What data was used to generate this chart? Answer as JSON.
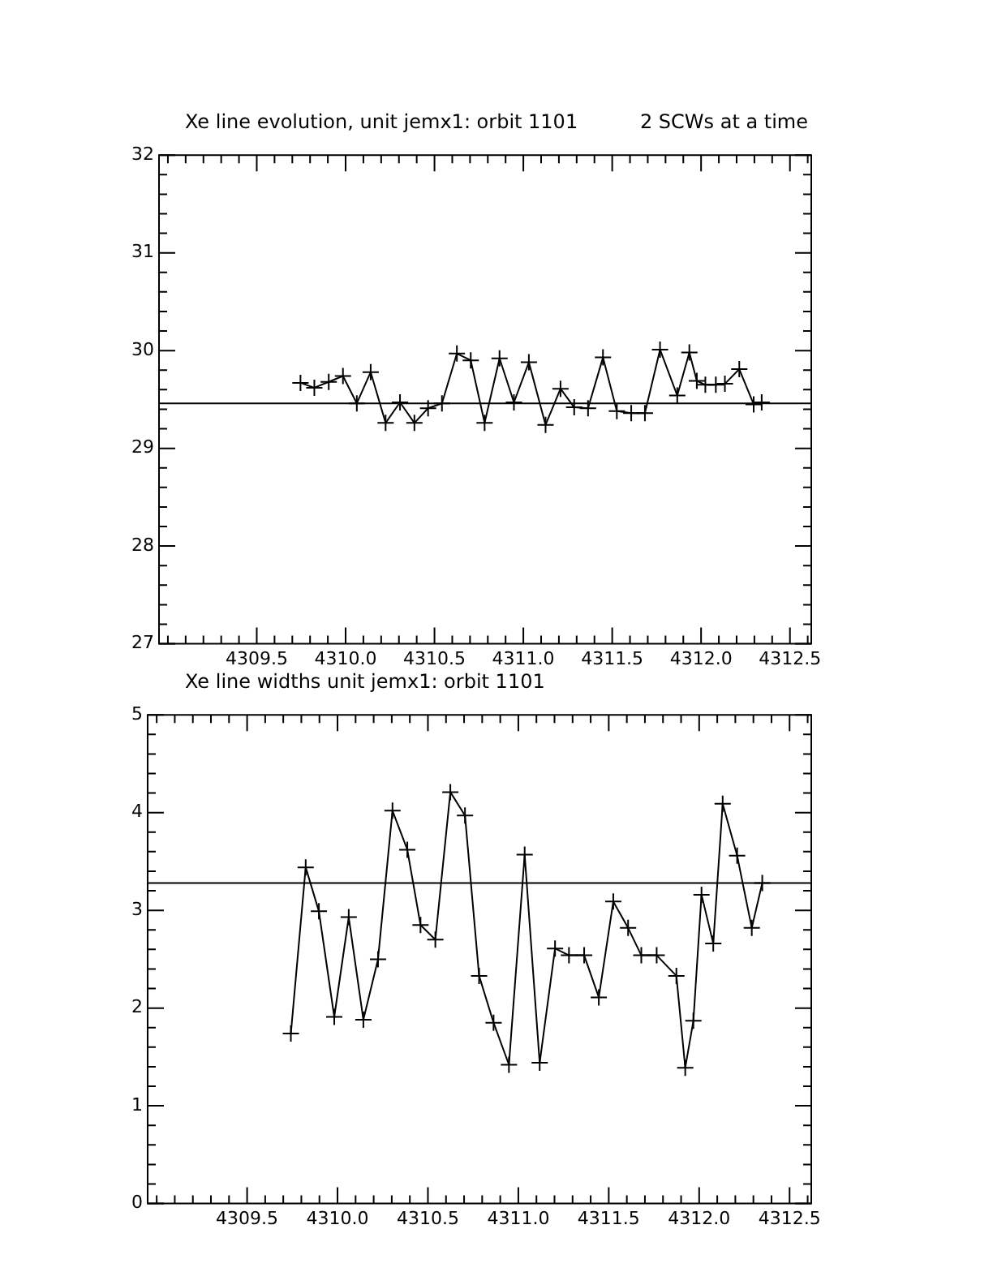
{
  "chart_data": [
    {
      "type": "line",
      "title": "Xe line evolution, unit jemx1: orbit 1101",
      "subtitle": "2 SCWs at a time",
      "marker": "cross",
      "x": [
        4309.746,
        4309.824,
        4309.905,
        4309.985,
        4310.063,
        4310.141,
        4310.225,
        4310.306,
        4310.387,
        4310.464,
        4310.542,
        4310.626,
        4310.704,
        4310.782,
        4310.866,
        4310.947,
        4311.031,
        4311.125,
        4311.209,
        4311.286,
        4311.364,
        4311.448,
        4311.526,
        4311.607,
        4311.684,
        4311.769,
        4311.866,
        4311.934,
        4311.976,
        4312.024,
        4312.083,
        4312.134,
        4312.215,
        4312.296,
        4312.341
      ],
      "series": [
        {
          "color": "#000000",
          "values": [
            29.67,
            29.62,
            29.68,
            29.74,
            29.46,
            29.78,
            29.26,
            29.47,
            29.26,
            29.41,
            29.46,
            29.97,
            29.9,
            29.26,
            29.92,
            29.47,
            29.88,
            29.24,
            29.61,
            29.42,
            29.41,
            29.93,
            29.38,
            29.36,
            29.36,
            30.01,
            29.54,
            29.98,
            29.69,
            29.65,
            29.65,
            29.66,
            29.81,
            29.45,
            29.47
          ]
        }
      ],
      "ref_lines": [
        {
          "axis": "y",
          "value": 29.46,
          "color": "#000000"
        }
      ],
      "xlim": [
        4308.95,
        4312.62
      ],
      "xticks": [
        {
          "value": 4309.0,
          "label": null
        },
        {
          "value": 4309.1,
          "label": null
        },
        {
          "value": 4309.2,
          "label": null
        },
        {
          "value": 4309.3,
          "label": null
        },
        {
          "value": 4309.4,
          "label": null
        },
        4309.5,
        {
          "value": 4309.6,
          "label": null
        },
        {
          "value": 4309.7,
          "label": null
        },
        {
          "value": 4309.8,
          "label": null
        },
        {
          "value": 4309.9,
          "label": null
        },
        {
          "value": 4310,
          "label": "4310.0"
        },
        {
          "value": 4310.1,
          "label": null
        },
        {
          "value": 4310.2,
          "label": null
        },
        {
          "value": 4310.3,
          "label": null
        },
        {
          "value": 4310.4,
          "label": null
        },
        4310.5,
        {
          "value": 4310.6,
          "label": null
        },
        {
          "value": 4310.7,
          "label": null
        },
        {
          "value": 4310.8,
          "label": null
        },
        {
          "value": 4310.9,
          "label": null
        },
        {
          "value": 4311,
          "label": "4311.0"
        },
        {
          "value": 4311.1,
          "label": null
        },
        {
          "value": 4311.2,
          "label": null
        },
        {
          "value": 4311.3,
          "label": null
        },
        {
          "value": 4311.4,
          "label": null
        },
        4311.5,
        {
          "value": 4311.6,
          "label": null
        },
        {
          "value": 4311.7,
          "label": null
        },
        {
          "value": 4311.8,
          "label": null
        },
        {
          "value": 4311.9,
          "label": null
        },
        {
          "value": 4312,
          "label": "4312.0"
        },
        {
          "value": 4312.1,
          "label": null
        },
        {
          "value": 4312.2,
          "label": null
        },
        {
          "value": 4312.3,
          "label": null
        },
        {
          "value": 4312.4,
          "label": null
        },
        4312.5,
        {
          "value": 4312.6,
          "label": null
        }
      ],
      "ylim": [
        27,
        32
      ],
      "yticks": [
        27,
        {
          "value": 27.2,
          "label": null
        },
        {
          "value": 27.4,
          "label": null
        },
        {
          "value": 27.6,
          "label": null
        },
        {
          "value": 27.8,
          "label": null
        },
        28,
        {
          "value": 28.2,
          "label": null
        },
        {
          "value": 28.4,
          "label": null
        },
        {
          "value": 28.6,
          "label": null
        },
        {
          "value": 28.8,
          "label": null
        },
        29,
        {
          "value": 29.2,
          "label": null
        },
        {
          "value": 29.4,
          "label": null
        },
        {
          "value": 29.6,
          "label": null
        },
        {
          "value": 29.8,
          "label": null
        },
        30,
        {
          "value": 30.2,
          "label": null
        },
        {
          "value": 30.4,
          "label": null
        },
        {
          "value": 30.6,
          "label": null
        },
        {
          "value": 30.8,
          "label": null
        },
        31,
        {
          "value": 31.2,
          "label": null
        },
        {
          "value": 31.4,
          "label": null
        },
        {
          "value": 31.6,
          "label": null
        },
        {
          "value": 31.8,
          "label": null
        },
        32
      ]
    },
    {
      "type": "line",
      "title": "Xe line widths unit jemx1: orbit 1101",
      "marker": "cross",
      "x": [
        4309.742,
        4309.824,
        4309.897,
        4309.982,
        4310.062,
        4310.143,
        4310.224,
        4310.304,
        4310.386,
        4310.459,
        4310.541,
        4310.624,
        4310.705,
        4310.783,
        4310.863,
        4310.948,
        4311.035,
        4311.118,
        4311.203,
        4311.28,
        4311.364,
        4311.445,
        4311.525,
        4311.607,
        4311.68,
        4311.765,
        4311.874,
        4311.923,
        4311.968,
        4312.013,
        4312.078,
        4312.13,
        4312.21,
        4312.291,
        4312.349
      ],
      "series": [
        {
          "color": "#000000",
          "values": [
            1.74,
            3.44,
            2.99,
            1.91,
            2.93,
            1.88,
            2.5,
            4.02,
            3.62,
            2.85,
            2.7,
            4.21,
            3.97,
            2.33,
            1.85,
            1.42,
            3.57,
            1.44,
            2.61,
            2.54,
            2.54,
            2.11,
            3.09,
            2.82,
            2.54,
            2.54,
            2.33,
            1.39,
            1.87,
            3.16,
            2.66,
            4.09,
            3.56,
            2.82,
            3.28
          ]
        }
      ],
      "ref_lines": [
        {
          "axis": "y",
          "value": 3.28,
          "color": "#000000"
        }
      ],
      "xlim": [
        4308.95,
        4312.62
      ],
      "xticks": [
        {
          "value": 4309.0,
          "label": null
        },
        {
          "value": 4309.1,
          "label": null
        },
        {
          "value": 4309.2,
          "label": null
        },
        {
          "value": 4309.3,
          "label": null
        },
        {
          "value": 4309.4,
          "label": null
        },
        4309.5,
        {
          "value": 4309.6,
          "label": null
        },
        {
          "value": 4309.7,
          "label": null
        },
        {
          "value": 4309.8,
          "label": null
        },
        {
          "value": 4309.9,
          "label": null
        },
        {
          "value": 4310,
          "label": "4310.0"
        },
        {
          "value": 4310.1,
          "label": null
        },
        {
          "value": 4310.2,
          "label": null
        },
        {
          "value": 4310.3,
          "label": null
        },
        {
          "value": 4310.4,
          "label": null
        },
        4310.5,
        {
          "value": 4310.6,
          "label": null
        },
        {
          "value": 4310.7,
          "label": null
        },
        {
          "value": 4310.8,
          "label": null
        },
        {
          "value": 4310.9,
          "label": null
        },
        {
          "value": 4311,
          "label": "4311.0"
        },
        {
          "value": 4311.1,
          "label": null
        },
        {
          "value": 4311.2,
          "label": null
        },
        {
          "value": 4311.3,
          "label": null
        },
        {
          "value": 4311.4,
          "label": null
        },
        4311.5,
        {
          "value": 4311.6,
          "label": null
        },
        {
          "value": 4311.7,
          "label": null
        },
        {
          "value": 4311.8,
          "label": null
        },
        {
          "value": 4311.9,
          "label": null
        },
        {
          "value": 4312,
          "label": "4312.0"
        },
        {
          "value": 4312.1,
          "label": null
        },
        {
          "value": 4312.2,
          "label": null
        },
        {
          "value": 4312.3,
          "label": null
        },
        {
          "value": 4312.4,
          "label": null
        },
        4312.5,
        {
          "value": 4312.6,
          "label": null
        }
      ],
      "ylim": [
        0,
        5
      ],
      "yticks": [
        0,
        {
          "value": 0.2,
          "label": null
        },
        {
          "value": 0.4,
          "label": null
        },
        {
          "value": 0.6,
          "label": null
        },
        {
          "value": 0.8,
          "label": null
        },
        1,
        {
          "value": 1.2,
          "label": null
        },
        {
          "value": 1.4,
          "label": null
        },
        {
          "value": 1.6,
          "label": null
        },
        {
          "value": 1.8,
          "label": null
        },
        2,
        {
          "value": 2.2,
          "label": null
        },
        {
          "value": 2.4,
          "label": null
        },
        {
          "value": 2.6,
          "label": null
        },
        {
          "value": 2.8,
          "label": null
        },
        3,
        {
          "value": 3.2,
          "label": null
        },
        {
          "value": 3.4,
          "label": null
        },
        {
          "value": 3.6,
          "label": null
        },
        {
          "value": 3.8,
          "label": null
        },
        4,
        {
          "value": 4.2,
          "label": null
        },
        {
          "value": 4.4,
          "label": null
        },
        {
          "value": 4.6,
          "label": null
        },
        {
          "value": 4.8,
          "label": null
        },
        5
      ]
    }
  ]
}
